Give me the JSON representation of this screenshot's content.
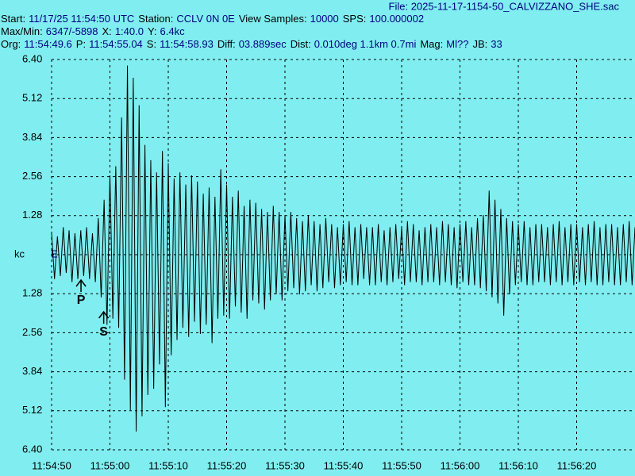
{
  "chart_data": {
    "type": "line",
    "file": "File: 2025-11-17-1154-50_CALVIZZANO_SHE.sac",
    "info": [
      [
        {
          "label": "Start:",
          "value": "11/17/25 11:54:50 UTC"
        },
        {
          "label": "Station:",
          "value": "CCLV 0N 0E"
        },
        {
          "label": "View Samples:",
          "value": "10000"
        },
        {
          "label": "SPS:",
          "value": "100.000002"
        }
      ],
      [
        {
          "label": "Max/Min:",
          "value": "6347/-5898"
        },
        {
          "label": "X:",
          "value": "1:40.0"
        },
        {
          "label": "Y:",
          "value": "6.4kc"
        }
      ],
      [
        {
          "label": "Org:",
          "value": "11:54:49.6"
        },
        {
          "label": "P:",
          "value": "11:54:55.04"
        },
        {
          "label": "S:",
          "value": "11:54:58.93"
        },
        {
          "label": "Diff:",
          "value": "03.889sec"
        },
        {
          "label": "Dist:",
          "value": "0.010deg 1.1km 0.7mi"
        },
        {
          "label": "Mag:",
          "value": "Ml??"
        },
        {
          "label": "JB:",
          "value": "33"
        }
      ]
    ],
    "channel": "E",
    "background": "#80eef0",
    "grid": true,
    "xlim": [
      42890,
      42990
    ],
    "xticks": [
      {
        "value": 42890,
        "label": "11:54:50"
      },
      {
        "value": 42900,
        "label": "11:55:00"
      },
      {
        "value": 42910,
        "label": "11:55:10"
      },
      {
        "value": 42920,
        "label": "11:55:20"
      },
      {
        "value": 42930,
        "label": "11:55:30"
      },
      {
        "value": 42940,
        "label": "11:55:40"
      },
      {
        "value": 42950,
        "label": "11:55:50"
      },
      {
        "value": 42960,
        "label": "11:56:00"
      },
      {
        "value": 42970,
        "label": "11:56:10"
      },
      {
        "value": 42980,
        "label": "11:56:20"
      }
    ],
    "ylim": [
      -6.4,
      6.4
    ],
    "yticks": [
      {
        "value": 6.4,
        "label": "6.40"
      },
      {
        "value": 5.12,
        "label": "5.12"
      },
      {
        "value": 3.84,
        "label": "3.84"
      },
      {
        "value": 2.56,
        "label": "2.56"
      },
      {
        "value": 1.28,
        "label": "1.28"
      },
      {
        "value": 0,
        "label": "kc"
      },
      {
        "value": -1.28,
        "label": "1.28"
      },
      {
        "value": -2.56,
        "label": "2.56"
      },
      {
        "value": -3.84,
        "label": "3.84"
      },
      {
        "value": -5.12,
        "label": "5.12"
      },
      {
        "value": -6.4,
        "label": "6.40"
      }
    ],
    "annotations": [
      {
        "text": "P",
        "x": 42895.04
      },
      {
        "text": "S",
        "x": 42898.93
      }
    ],
    "series": [
      {
        "color": "#000000",
        "x": [
          42890,
          42890.5,
          42891,
          42891.5,
          42892,
          42892.5,
          42893,
          42893.5,
          42894,
          42894.5,
          42895,
          42895.5,
          42896,
          42896.5,
          42897,
          42897.5,
          42898,
          42898.5,
          42899,
          42899.5,
          42900,
          42900.5,
          42901,
          42901.5,
          42902,
          42902.5,
          42903,
          42903.5,
          42904,
          42904.5,
          42905,
          42905.5,
          42906,
          42906.5,
          42907,
          42907.5,
          42908,
          42908.5,
          42909,
          42909.5,
          42910,
          42910.5,
          42911,
          42911.5,
          42912,
          42912.5,
          42913,
          42913.5,
          42914,
          42914.5,
          42915,
          42915.5,
          42916,
          42916.5,
          42917,
          42917.5,
          42918,
          42918.5,
          42919,
          42919.5,
          42920,
          42920.5,
          42921,
          42921.5,
          42922,
          42922.5,
          42923,
          42923.5,
          42924,
          42924.5,
          42925,
          42925.5,
          42926,
          42926.5,
          42927,
          42927.5,
          42928,
          42928.5,
          42929,
          42929.5,
          42930,
          42930.5,
          42931,
          42931.5,
          42932,
          42932.5,
          42933,
          42933.5,
          42934,
          42934.5,
          42935,
          42935.5,
          42936,
          42936.5,
          42937,
          42937.5,
          42938,
          42938.5,
          42939,
          42939.5,
          42940,
          42940.5,
          42941,
          42941.5,
          42942,
          42942.5,
          42943,
          42943.5,
          42944,
          42944.5,
          42945,
          42945.5,
          42946,
          42946.5,
          42947,
          42947.5,
          42948,
          42948.5,
          42949,
          42949.5,
          42950,
          42950.5,
          42951,
          42951.5,
          42952,
          42952.5,
          42953,
          42953.5,
          42954,
          42954.5,
          42955,
          42955.5,
          42956,
          42956.5,
          42957,
          42957.5,
          42958,
          42958.5,
          42959,
          42959.5,
          42960,
          42960.5,
          42961,
          42961.5,
          42962,
          42962.5,
          42963,
          42963.5,
          42964,
          42964.5,
          42965,
          42965.5,
          42966,
          42966.5,
          42967,
          42967.5,
          42968,
          42968.5,
          42969,
          42969.5,
          42970,
          42970.5,
          42971,
          42971.5,
          42972,
          42972.5,
          42973,
          42973.5,
          42974,
          42974.5,
          42975,
          42975.5,
          42976,
          42976.5,
          42977,
          42977.5,
          42978,
          42978.5,
          42979,
          42979.5,
          42980,
          42980.5,
          42981,
          42981.5,
          42982,
          42982.5,
          42983,
          42983.5,
          42984,
          42984.5,
          42985,
          42985.5,
          42986,
          42986.5,
          42987,
          42987.5,
          42988,
          42988.5,
          42989,
          42989.5,
          42990
        ],
        "values": [
          0.7,
          -0.8,
          0.6,
          -0.7,
          0.9,
          -0.6,
          0.8,
          -0.9,
          0.7,
          -0.8,
          0.8,
          -0.7,
          0.9,
          -0.8,
          0.7,
          -0.9,
          1.2,
          -1.4,
          1.8,
          -2.3,
          2.6,
          -2.1,
          2.9,
          -2.4,
          4.5,
          -4.1,
          6.2,
          -5.1,
          5.8,
          -5.8,
          4.9,
          -5.3,
          3.6,
          -4.6,
          3.1,
          -4.4,
          2.7,
          -3.6,
          3.4,
          -5.0,
          3.0,
          -3.3,
          2.5,
          -2.8,
          2.7,
          -2.4,
          2.3,
          -2.7,
          2.6,
          -2.2,
          2.4,
          -2.6,
          2.0,
          -2.3,
          2.2,
          -2.9,
          1.9,
          -2.1,
          2.8,
          -2.0,
          2.3,
          -2.1,
          1.9,
          -1.7,
          2.1,
          -1.9,
          1.6,
          -2.1,
          1.8,
          -1.5,
          1.7,
          -1.6,
          1.5,
          -1.8,
          1.4,
          -1.5,
          1.6,
          -1.3,
          1.4,
          -1.5,
          1.3,
          -1.2,
          1.4,
          -1.1,
          1.2,
          -1.3,
          1.1,
          -1.2,
          1.3,
          -1.0,
          1.1,
          -1.2,
          1.0,
          -1.1,
          1.2,
          -0.9,
          1.0,
          -1.1,
          0.9,
          -1.0,
          1.0,
          -0.9,
          1.1,
          -1.0,
          0.9,
          -1.0,
          1.0,
          -0.8,
          0.9,
          -1.0,
          0.9,
          -1.0,
          1.0,
          -0.9,
          0.8,
          -1.0,
          0.9,
          -0.9,
          1.0,
          -0.8,
          0.9,
          -1.0,
          1.1,
          -0.9,
          1.0,
          -0.9,
          0.8,
          -1.0,
          0.9,
          -0.9,
          1.0,
          -0.9,
          0.9,
          -1.0,
          1.1,
          -0.9,
          1.0,
          -1.0,
          0.9,
          -1.1,
          1.0,
          -0.9,
          1.1,
          -1.0,
          0.9,
          -1.0,
          1.2,
          -1.1,
          1.3,
          -1.2,
          2.1,
          -1.4,
          1.8,
          -1.6,
          1.5,
          -2.0,
          1.2,
          -1.3,
          1.1,
          -1.0,
          1.0,
          -0.9,
          1.1,
          -1.0,
          0.9,
          -1.0,
          1.0,
          -0.9,
          1.0,
          -0.9,
          0.9,
          -1.0,
          1.0,
          -0.9,
          1.1,
          -1.0,
          0.9,
          -0.9,
          1.0,
          -1.0,
          1.0,
          -0.9,
          0.9,
          -1.0,
          1.0,
          -0.9,
          1.1,
          -1.0,
          0.9,
          -1.0,
          1.0,
          -0.9,
          1.0,
          -1.0,
          0.9,
          -1.0,
          1.0,
          -0.9,
          1.1,
          -1.0,
          0.9
        ]
      }
    ]
  }
}
